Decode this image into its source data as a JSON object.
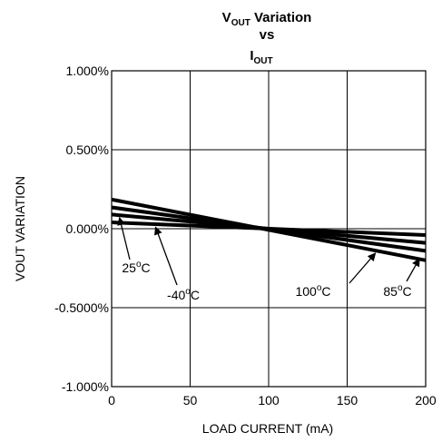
{
  "chart_data": {
    "type": "line",
    "title": {
      "line1_main": "V",
      "line1_sub": "OUT",
      "line1_rest": " Variation",
      "line2": "vs",
      "line3_main": "I",
      "line3_sub": "OUT"
    },
    "xlabel": "LOAD CURRENT (mA)",
    "ylabel": "VOUT VARIATION",
    "xlim": [
      0,
      200
    ],
    "ylim": [
      -1.0,
      1.0
    ],
    "x_ticks": [
      0,
      50,
      100,
      150,
      200
    ],
    "x_tick_labels": [
      "0",
      "50",
      "100",
      "150",
      "200"
    ],
    "y_ticks": [
      1.0,
      0.5,
      0.0,
      -0.5,
      -1.0
    ],
    "y_tick_labels": [
      "1.000%",
      "0.500%",
      "0.000%",
      "-0.5000%",
      "-1.000%"
    ],
    "grid": true,
    "series": [
      {
        "name": "25°C",
        "x": [
          0,
          200
        ],
        "y": [
          0.185,
          -0.2
        ]
      },
      {
        "name": "-40°C",
        "x": [
          0,
          200
        ],
        "y": [
          0.135,
          -0.14
        ]
      },
      {
        "name": "100°C",
        "x": [
          0,
          200
        ],
        "y": [
          0.09,
          -0.09
        ]
      },
      {
        "name": "85°C",
        "x": [
          0,
          200
        ],
        "y": [
          0.04,
          -0.04
        ]
      }
    ],
    "annotations": [
      {
        "text_main": "25",
        "text_sup": "o",
        "text_rest": "C",
        "tip": [
          5,
          0.07
        ]
      },
      {
        "text_main": "-40",
        "text_sup": "o",
        "text_rest": "C",
        "tip": [
          28,
          0.01
        ]
      },
      {
        "text_main": "100",
        "text_sup": "o",
        "text_rest": "C",
        "tip": [
          168,
          -0.155
        ]
      },
      {
        "text_main": "85",
        "text_sup": "o",
        "text_rest": "C",
        "tip": [
          196,
          -0.19
        ]
      }
    ]
  }
}
